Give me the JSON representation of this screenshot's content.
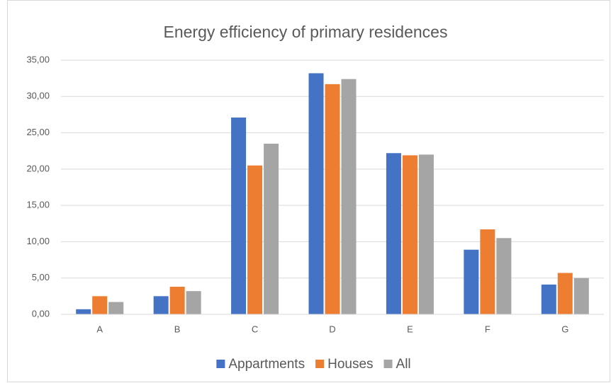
{
  "chart_data": {
    "type": "bar",
    "title": "Energy efficiency of primary residences",
    "categories": [
      "A",
      "B",
      "C",
      "D",
      "E",
      "F",
      "G"
    ],
    "series": [
      {
        "name": "Appartments",
        "color": "#4472c4",
        "values": [
          0.7,
          2.5,
          27.1,
          33.2,
          22.2,
          8.9,
          4.1
        ]
      },
      {
        "name": "Houses",
        "color": "#ed7d31",
        "values": [
          2.5,
          3.8,
          20.5,
          31.7,
          21.9,
          11.7,
          5.7
        ]
      },
      {
        "name": "All",
        "color": "#a5a5a5",
        "values": [
          1.7,
          3.2,
          23.5,
          32.4,
          22.0,
          10.5,
          5.0
        ]
      }
    ],
    "ylim": [
      0,
      35
    ],
    "yticks": [
      {
        "value": 0,
        "label": "0,00"
      },
      {
        "value": 5,
        "label": "5,00"
      },
      {
        "value": 10,
        "label": "10,00"
      },
      {
        "value": 15,
        "label": "15,00"
      },
      {
        "value": 20,
        "label": "20,00"
      },
      {
        "value": 25,
        "label": "25,00"
      },
      {
        "value": 30,
        "label": "30,00"
      },
      {
        "value": 35,
        "label": "35,00"
      }
    ],
    "grid": true,
    "legend": "bottom"
  }
}
